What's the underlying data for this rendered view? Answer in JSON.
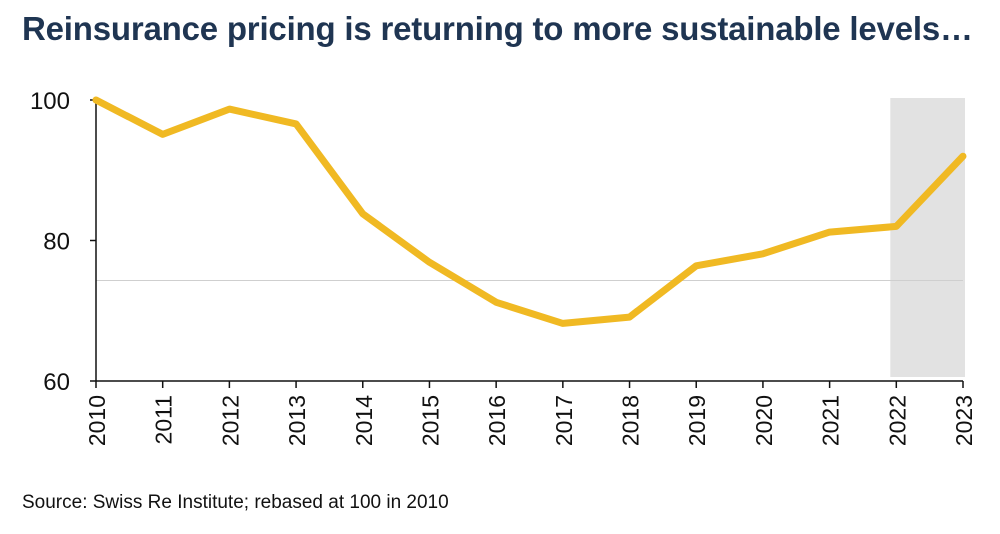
{
  "chart_data": {
    "type": "line",
    "title": "Reinsurance pricing is returning to more sustainable levels…",
    "source": "Source: Swiss Re Institute; rebased at 100 in 2010",
    "x": [
      2010,
      2011,
      2012,
      2013,
      2014,
      2015,
      2016,
      2017,
      2018,
      2019,
      2020,
      2021,
      2022,
      2023
    ],
    "series": [
      {
        "values": [
          100,
          95.1,
          98.7,
          96.6,
          83.8,
          76.9,
          71.2,
          68.2,
          69.1,
          76.4,
          78.1,
          81.2,
          82.0,
          92.0
        ]
      }
    ],
    "ylim": [
      60,
      100
    ],
    "yticks": [
      60,
      80,
      100
    ],
    "reference_line": 74.3,
    "highlight_range": [
      2022,
      2023
    ],
    "colors": {
      "line": "#f0b923",
      "highlight": "#e2e2e2",
      "title": "#1f3552",
      "axis": "#111111"
    }
  }
}
